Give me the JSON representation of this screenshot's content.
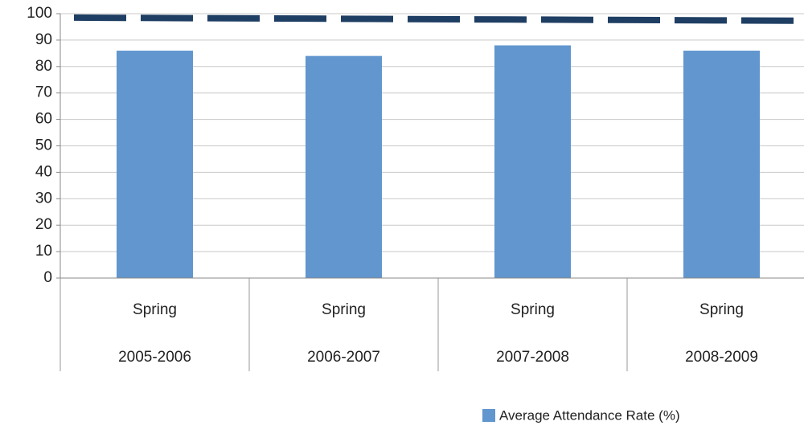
{
  "chart_data": {
    "type": "bar",
    "categories": [
      [
        "Spring",
        "2005-2006"
      ],
      [
        "Spring",
        "2006-2007"
      ],
      [
        "Spring",
        "2007-2008"
      ],
      [
        "Spring",
        "2008-2009"
      ]
    ],
    "series": [
      {
        "name": "Average Attendance Rate (%)",
        "color": "#6196ce",
        "values": [
          86,
          84,
          88,
          86
        ]
      }
    ],
    "dashed_line": {
      "color": "#1f3e63",
      "start": 98.5,
      "end": 97.3
    },
    "ylim": [
      0,
      100
    ],
    "yticks": [
      0,
      10,
      20,
      30,
      40,
      50,
      60,
      70,
      80,
      90,
      100
    ],
    "grid": true,
    "legend": "bottom"
  }
}
